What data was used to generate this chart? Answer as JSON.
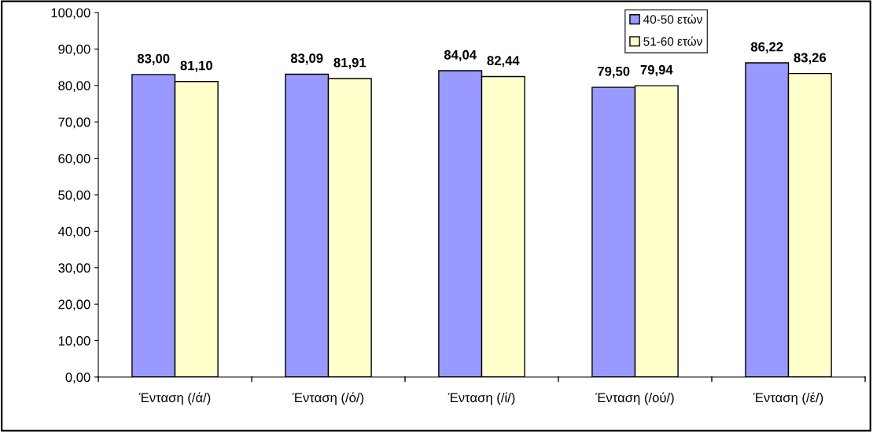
{
  "chart_data": {
    "type": "bar",
    "categories": [
      "Ένταση (/ά/)",
      "Ένταση (/ό/)",
      "Ένταση (/ί/)",
      "Ένταση (/ού/)",
      "Ένταση (/έ/)"
    ],
    "series": [
      {
        "name": "40-50 ετών",
        "color": "#9999ff",
        "values": [
          83.0,
          83.09,
          84.04,
          79.5,
          86.22
        ],
        "value_labels": [
          "83,00",
          "83,09",
          "84,04",
          "79,50",
          "86,22"
        ]
      },
      {
        "name": "51-60 ετών",
        "color": "#ffffcc",
        "values": [
          81.1,
          81.91,
          82.44,
          79.94,
          83.26
        ],
        "value_labels": [
          "81,10",
          "81,91",
          "82,44",
          "79,94",
          "83,26"
        ]
      }
    ],
    "ylim": [
      0,
      100
    ],
    "yticks": [
      {
        "value": 0,
        "label": "0,00"
      },
      {
        "value": 10,
        "label": "10,00"
      },
      {
        "value": 20,
        "label": "20,00"
      },
      {
        "value": 30,
        "label": "30,00"
      },
      {
        "value": 40,
        "label": "40,00"
      },
      {
        "value": 50,
        "label": "50,00"
      },
      {
        "value": 60,
        "label": "60,00"
      },
      {
        "value": 70,
        "label": "70,00"
      },
      {
        "value": 80,
        "label": "80,00"
      },
      {
        "value": 90,
        "label": "90,00"
      },
      {
        "value": 100,
        "label": "100,00"
      }
    ],
    "grid": false,
    "legend": "top right"
  }
}
